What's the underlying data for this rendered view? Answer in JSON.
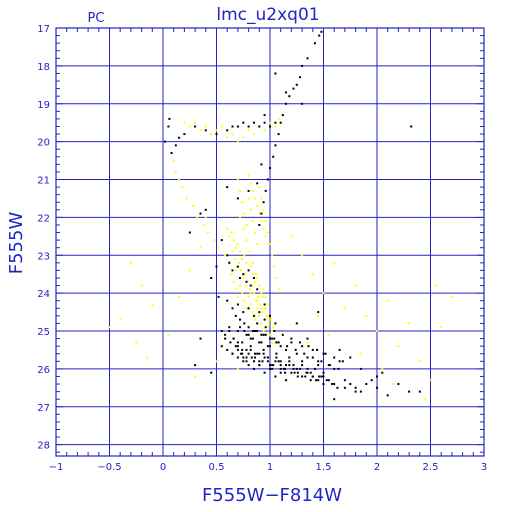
{
  "chart_data": {
    "type": "scatter",
    "title": "lmc_u2xq01",
    "corner_label": "PC",
    "xlabel": "F555W−F814W",
    "ylabel": "F555W",
    "xlim": [
      -1,
      3
    ],
    "ylim": [
      28.3,
      17
    ],
    "y_inverted": true,
    "grid": true,
    "x_ticks": [
      -1,
      -0.5,
      0,
      0.5,
      1,
      1.5,
      2,
      2.5,
      3
    ],
    "x_tick_labels": [
      "−1",
      "−0.5",
      "0",
      "0.5",
      "1",
      "1.5",
      "2",
      "2.5",
      "3"
    ],
    "y_ticks": [
      17,
      18,
      19,
      20,
      21,
      22,
      23,
      24,
      25,
      26,
      27,
      28
    ],
    "y_tick_labels": [
      "17",
      "18",
      "19",
      "20",
      "21",
      "22",
      "23",
      "24",
      "25",
      "26",
      "27",
      "28"
    ],
    "colors": {
      "axis": "#2323c8",
      "grid": "#2323c8",
      "series_black": "#000000",
      "series_yellow": "#ffff00"
    },
    "series": [
      {
        "color": "#000000",
        "x": [
          1.48,
          1.46,
          1.42,
          1.35,
          1.3,
          1.28,
          1.22,
          1.18,
          1.15,
          1.12,
          1.1,
          1.08,
          1.05,
          1.03,
          1.0,
          0.98,
          0.96,
          0.94,
          0.92,
          0.9,
          0.06,
          0.05,
          0.02,
          0.08,
          0.12,
          0.15,
          0.2,
          0.3,
          0.4,
          0.5,
          0.6,
          0.65,
          0.7,
          0.75,
          0.8,
          0.85,
          0.9,
          0.95,
          1.0,
          1.05,
          0.6,
          0.62,
          0.65,
          0.7,
          0.72,
          0.75,
          0.78,
          0.8,
          0.82,
          0.85,
          0.88,
          0.6,
          0.65,
          0.7,
          0.75,
          0.8,
          0.85,
          0.9,
          0.95,
          1.0,
          1.05,
          0.55,
          0.58,
          0.62,
          0.66,
          0.7,
          0.74,
          0.78,
          0.82,
          0.86,
          0.9,
          0.94,
          0.98,
          1.02,
          1.06,
          1.1,
          1.15,
          1.2,
          1.25,
          1.3,
          1.35,
          1.4,
          1.45,
          1.5,
          1.55,
          1.6,
          1.65,
          0.55,
          0.6,
          0.65,
          0.7,
          0.75,
          0.8,
          0.85,
          0.9,
          0.95,
          1.0,
          1.05,
          1.1,
          1.15,
          1.2,
          1.25,
          1.3,
          1.35,
          1.4,
          1.45,
          1.5,
          0.58,
          0.63,
          0.68,
          0.73,
          0.78,
          0.83,
          0.88,
          0.93,
          0.98,
          1.03,
          1.08,
          1.13,
          1.18,
          1.23,
          1.28,
          1.33,
          1.38,
          1.43,
          1.48,
          1.53,
          1.58,
          1.63,
          1.7,
          1.75,
          1.8,
          1.85,
          1.9,
          2.0,
          2.1,
          2.3,
          0.72,
          0.76,
          0.8,
          0.84,
          0.88,
          0.92,
          0.96,
          1.0,
          1.04,
          0.65,
          0.7,
          0.75,
          0.8,
          0.85,
          0.9,
          0.95,
          1.0,
          1.05,
          1.1,
          1.15,
          0.68,
          0.72,
          0.76,
          0.8,
          0.84,
          0.88,
          0.92,
          0.96,
          1.0,
          1.04,
          1.08,
          1.12,
          1.16,
          1.2,
          1.24,
          1.28,
          1.32,
          1.36,
          1.4,
          1.44,
          1.48,
          1.52,
          1.56,
          1.6,
          1.64,
          1.68,
          0.62,
          0.66,
          0.7,
          0.74,
          0.78,
          0.82,
          0.86,
          0.9,
          0.94,
          0.98,
          1.02,
          1.06,
          1.1,
          1.14,
          1.18,
          1.22,
          1.26,
          1.3,
          1.34,
          1.38,
          1.42,
          1.46,
          1.5,
          0.7,
          0.74,
          0.78,
          0.82,
          0.86,
          0.9,
          0.94,
          0.98,
          1.02,
          1.06,
          1.1,
          1.14,
          1.18,
          1.22,
          1.26,
          1.3,
          1.35,
          1.4,
          1.45,
          1.5,
          1.55,
          1.6,
          1.7,
          1.8,
          2.0,
          2.2,
          2.4
        ],
        "y": [
          17.1,
          17.2,
          17.4,
          17.8,
          18.0,
          18.3,
          18.6,
          18.8,
          19.0,
          19.3,
          19.5,
          19.8,
          20.1,
          20.4,
          20.7,
          21.0,
          21.3,
          21.6,
          21.9,
          22.2,
          19.4,
          19.6,
          20.0,
          20.3,
          20.1,
          19.9,
          19.8,
          19.6,
          19.7,
          19.8,
          19.7,
          19.6,
          19.6,
          19.5,
          19.6,
          19.5,
          19.6,
          19.5,
          19.6,
          19.5,
          23.0,
          23.2,
          23.4,
          23.3,
          23.6,
          23.5,
          23.7,
          23.4,
          23.8,
          23.6,
          23.9,
          24.2,
          24.4,
          24.3,
          24.5,
          24.4,
          24.6,
          24.5,
          24.7,
          24.6,
          24.8,
          25.0,
          25.1,
          24.9,
          25.2,
          25.0,
          25.3,
          25.1,
          25.2,
          25.0,
          25.3,
          25.1,
          25.4,
          25.2,
          25.3,
          25.4,
          25.5,
          25.3,
          25.6,
          25.4,
          25.7,
          25.5,
          25.8,
          25.6,
          25.9,
          26.0,
          25.8,
          25.4,
          25.5,
          25.6,
          25.5,
          25.7,
          25.6,
          25.8,
          25.6,
          25.7,
          25.9,
          25.8,
          26.0,
          25.9,
          26.1,
          26.0,
          26.2,
          26.1,
          26.2,
          26.3,
          26.2,
          25.2,
          25.3,
          25.4,
          25.6,
          25.5,
          25.7,
          25.6,
          25.8,
          25.7,
          25.9,
          25.8,
          26.0,
          25.9,
          26.1,
          26.0,
          26.2,
          26.1,
          26.3,
          26.2,
          26.3,
          26.4,
          26.5,
          26.3,
          26.4,
          26.5,
          26.6,
          26.4,
          26.5,
          26.7,
          26.6,
          24.9,
          25.0,
          25.1,
          25.2,
          25.0,
          25.3,
          25.1,
          25.4,
          25.2,
          25.6,
          25.7,
          25.8,
          25.9,
          26.0,
          25.9,
          26.1,
          26.0,
          26.2,
          26.1,
          26.3,
          24.6,
          24.7,
          24.8,
          24.9,
          25.0,
          24.8,
          25.1,
          24.9,
          25.2,
          25.0,
          25.3,
          25.1,
          25.4,
          25.2,
          25.5,
          25.3,
          25.6,
          25.4,
          25.7,
          25.5,
          25.8,
          25.6,
          25.9,
          25.7,
          26.0,
          25.8,
          25.0,
          25.2,
          25.4,
          25.6,
          25.8,
          25.5,
          25.7,
          25.9,
          25.6,
          25.8,
          26.0,
          25.7,
          25.9,
          26.1,
          25.8,
          26.0,
          26.2,
          25.9,
          26.1,
          26.3,
          26.0,
          26.2,
          26.4,
          25.3,
          25.5,
          25.7,
          25.4,
          25.6,
          25.8,
          25.5,
          25.7,
          25.9,
          25.6,
          25.8,
          26.0,
          25.7,
          25.9,
          26.1,
          25.8,
          26.0,
          26.2,
          25.9,
          26.1,
          26.3,
          26.4,
          26.5,
          26.6,
          26.2,
          26.4,
          26.6
        ],
        "extra_points": [
          [
            2.32,
            19.6
          ],
          [
            1.3,
            19.0
          ],
          [
            1.25,
            18.5
          ],
          [
            1.15,
            18.7
          ],
          [
            1.05,
            18.2
          ],
          [
            0.95,
            19.3
          ],
          [
            0.92,
            20.6
          ],
          [
            0.88,
            21.1
          ],
          [
            0.8,
            21.3
          ],
          [
            0.7,
            21.5
          ],
          [
            0.6,
            21.2
          ],
          [
            0.4,
            21.8
          ],
          [
            0.35,
            21.9
          ],
          [
            0.25,
            22.4
          ],
          [
            0.55,
            22.6
          ],
          [
            0.5,
            23.3
          ],
          [
            0.45,
            23.6
          ],
          [
            0.52,
            24.1
          ],
          [
            1.25,
            24.8
          ],
          [
            1.35,
            25.2
          ],
          [
            1.45,
            24.5
          ],
          [
            1.65,
            25.5
          ],
          [
            1.75,
            25.7
          ],
          [
            1.85,
            26.0
          ],
          [
            1.95,
            26.3
          ],
          [
            2.05,
            26.1
          ],
          [
            1.6,
            26.8
          ],
          [
            0.95,
            24.3
          ],
          [
            0.35,
            25.2
          ],
          [
            0.3,
            25.9
          ],
          [
            0.45,
            26.1
          ]
        ]
      },
      {
        "color": "#ffff00",
        "x": [
          0.2,
          0.25,
          0.3,
          0.35,
          0.4,
          0.45,
          0.5,
          0.55,
          0.6,
          0.65,
          0.7,
          0.75,
          0.8,
          0.85,
          0.9,
          0.95,
          1.0,
          1.05,
          1.08,
          1.1,
          0.1,
          0.12,
          0.15,
          0.18,
          0.22,
          0.28,
          0.32,
          0.38,
          0.42,
          0.48,
          0.52,
          0.58,
          0.62,
          0.68,
          0.72,
          0.78,
          0.82,
          0.88,
          0.92,
          0.98,
          0.6,
          0.62,
          0.64,
          0.66,
          0.68,
          0.7,
          0.72,
          0.74,
          0.76,
          0.78,
          0.8,
          0.82,
          0.84,
          0.86,
          0.88,
          0.9,
          0.92,
          0.94,
          0.96,
          0.98,
          0.65,
          0.67,
          0.69,
          0.71,
          0.73,
          0.75,
          0.77,
          0.79,
          0.81,
          0.83,
          0.85,
          0.87,
          0.89,
          0.91,
          0.93,
          0.95,
          0.97,
          0.99,
          1.01,
          1.03,
          0.64,
          0.66,
          0.68,
          0.7,
          0.72,
          0.74,
          0.76,
          0.78,
          0.8,
          0.82,
          0.84,
          0.86,
          0.88,
          0.9,
          0.92,
          0.94,
          0.96,
          0.98,
          1.0,
          1.02,
          0.7,
          0.72,
          0.74,
          0.76,
          0.78,
          0.8,
          0.82,
          0.84,
          0.86,
          0.88,
          0.9,
          0.92,
          0.94,
          0.96,
          0.98,
          1.0,
          1.02,
          1.04,
          1.06,
          1.08,
          0.72,
          0.75,
          0.78,
          0.81,
          0.84,
          0.87,
          0.9,
          0.93,
          0.96,
          0.99,
          1.02,
          1.05,
          0.8,
          0.82,
          0.84,
          0.86,
          0.88,
          0.9,
          0.92,
          0.94,
          0.96,
          0.98
        ],
        "y": [
          19.5,
          19.6,
          19.5,
          19.7,
          19.6,
          19.8,
          19.7,
          19.6,
          19.9,
          19.8,
          20.0,
          19.9,
          19.7,
          19.8,
          19.6,
          19.7,
          19.5,
          19.6,
          19.4,
          19.5,
          20.5,
          20.8,
          21.0,
          21.2,
          21.5,
          21.7,
          22.0,
          22.2,
          22.4,
          22.6,
          22.8,
          23.0,
          23.2,
          23.4,
          23.6,
          23.8,
          24.0,
          24.2,
          24.4,
          24.6,
          22.3,
          22.5,
          22.4,
          22.6,
          22.8,
          22.7,
          22.9,
          23.1,
          23.0,
          23.2,
          23.4,
          23.3,
          23.5,
          23.7,
          23.6,
          23.8,
          24.0,
          23.9,
          24.1,
          24.3,
          22.9,
          23.1,
          23.3,
          23.2,
          23.4,
          23.6,
          23.5,
          23.7,
          23.9,
          23.8,
          24.0,
          24.2,
          24.1,
          24.3,
          24.5,
          24.4,
          24.6,
          24.8,
          24.7,
          24.9,
          23.5,
          23.7,
          23.9,
          24.1,
          23.8,
          24.0,
          24.2,
          24.4,
          24.1,
          24.3,
          24.5,
          24.7,
          24.4,
          24.6,
          24.8,
          25.0,
          24.7,
          24.9,
          25.1,
          25.3,
          21.0,
          21.3,
          21.6,
          21.9,
          22.2,
          21.5,
          21.8,
          22.1,
          22.4,
          22.7,
          21.2,
          21.5,
          21.8,
          22.1,
          22.4,
          22.7,
          23.0,
          23.3,
          23.6,
          23.9,
          22.0,
          22.3,
          22.6,
          22.9,
          23.2,
          23.5,
          23.8,
          24.1,
          24.4,
          24.7,
          25.0,
          25.3,
          20.9,
          21.1,
          21.3,
          21.5,
          21.7,
          21.9,
          22.1,
          22.3,
          22.5,
          22.7
        ],
        "extra_points": [
          [
            -0.3,
            23.2
          ],
          [
            -0.2,
            23.8
          ],
          [
            -0.1,
            24.3
          ],
          [
            -0.4,
            24.7
          ],
          [
            -0.5,
            24.9
          ],
          [
            -0.25,
            25.3
          ],
          [
            -0.15,
            25.7
          ],
          [
            0.05,
            25.1
          ],
          [
            0.15,
            24.1
          ],
          [
            0.25,
            23.4
          ],
          [
            0.35,
            22.8
          ],
          [
            0.4,
            22.0
          ],
          [
            1.2,
            22.5
          ],
          [
            1.3,
            23.0
          ],
          [
            1.4,
            23.5
          ],
          [
            1.5,
            24.0
          ],
          [
            1.6,
            23.2
          ],
          [
            1.7,
            24.4
          ],
          [
            1.8,
            23.8
          ],
          [
            1.9,
            24.6
          ],
          [
            2.0,
            25.0
          ],
          [
            2.1,
            24.2
          ],
          [
            2.2,
            25.4
          ],
          [
            2.3,
            24.8
          ],
          [
            2.4,
            25.8
          ],
          [
            2.5,
            26.3
          ],
          [
            2.6,
            24.9
          ],
          [
            2.05,
            26.0
          ],
          [
            1.85,
            25.6
          ],
          [
            2.15,
            26.4
          ],
          [
            2.45,
            26.8
          ],
          [
            1.55,
            25.1
          ],
          [
            1.25,
            24.8
          ],
          [
            1.35,
            25.3
          ],
          [
            1.45,
            24.6
          ],
          [
            0.5,
            25.8
          ],
          [
            0.3,
            26.2
          ],
          [
            0.7,
            26.0
          ],
          [
            2.55,
            23.8
          ],
          [
            2.7,
            24.1
          ]
        ]
      }
    ]
  }
}
